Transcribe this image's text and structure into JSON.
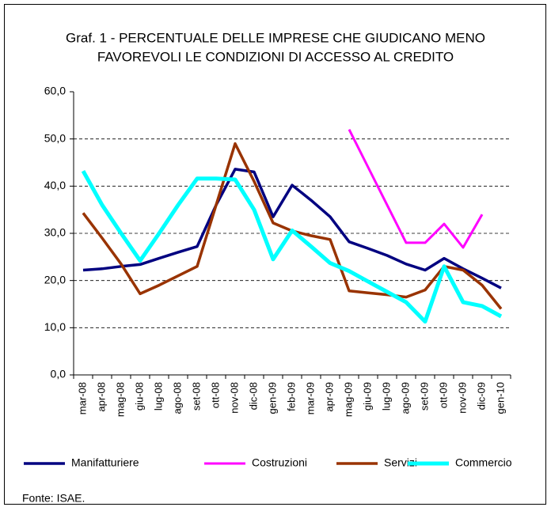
{
  "chart_data": {
    "type": "line",
    "title": [
      "Graf. 1 - PERCENTUALE DELLE IMPRESE CHE GIUDICANO MENO",
      "FAVOREVOLI LE CONDIZIONI DI ACCESSO AL CREDITO"
    ],
    "categories": [
      "mar-08",
      "apr-08",
      "mag-08",
      "giu-08",
      "lug-08",
      "ago-08",
      "set-08",
      "ott-08",
      "nov-08",
      "dic-08",
      "gen-09",
      "feb-09",
      "mar-09",
      "apr-09",
      "mag-09",
      "giu-09",
      "lug-09",
      "ago-09",
      "set-09",
      "ott-09",
      "nov-09",
      "dic-09",
      "gen-10"
    ],
    "series": [
      {
        "name": "Manifatturiere",
        "color": "#000080",
        "values": [
          22.2,
          22.5,
          23.0,
          23.4,
          24.7,
          26.0,
          27.2,
          36.0,
          43.6,
          43.0,
          33.5,
          40.2,
          37.0,
          33.5,
          28.2,
          26.8,
          25.3,
          23.5,
          22.2,
          24.7,
          22.5,
          20.5,
          18.4
        ]
      },
      {
        "name": "Costruzioni",
        "color": "#ff00ff",
        "values": [
          null,
          null,
          null,
          null,
          null,
          null,
          null,
          null,
          null,
          null,
          null,
          null,
          null,
          null,
          52.0,
          44.0,
          36.0,
          28.0,
          28.0,
          32.0,
          27.0,
          34.0,
          null
        ]
      },
      {
        "name": "Servizi",
        "color": "#993300",
        "values": [
          34.3,
          29.0,
          23.5,
          17.2,
          19.0,
          21.0,
          23.0,
          36.0,
          49.0,
          41.0,
          32.2,
          30.5,
          29.5,
          28.7,
          17.8,
          17.4,
          17.0,
          16.5,
          18.0,
          23.0,
          22.2,
          19.0,
          14.0
        ]
      },
      {
        "name": "Commercio",
        "color": "#00ffff",
        "values": [
          43.2,
          36.0,
          30.0,
          24.2,
          30.0,
          36.0,
          41.6,
          41.6,
          41.4,
          35.0,
          24.5,
          30.6,
          27.2,
          23.7,
          22.0,
          19.8,
          17.6,
          15.4,
          11.3,
          23.0,
          15.4,
          14.6,
          12.4
        ]
      }
    ],
    "ylim": [
      0,
      60
    ],
    "yticks": [
      {
        "value": 0,
        "label": "0,0"
      },
      {
        "value": 10,
        "label": "10,0"
      },
      {
        "value": 20,
        "label": "20,0"
      },
      {
        "value": 30,
        "label": "30,0"
      },
      {
        "value": 40,
        "label": "40,0"
      },
      {
        "value": 50,
        "label": "50,0"
      },
      {
        "value": 60,
        "label": "60,0"
      }
    ],
    "grid": true,
    "legend": "bottom",
    "source": "Fonte: ISAE."
  }
}
